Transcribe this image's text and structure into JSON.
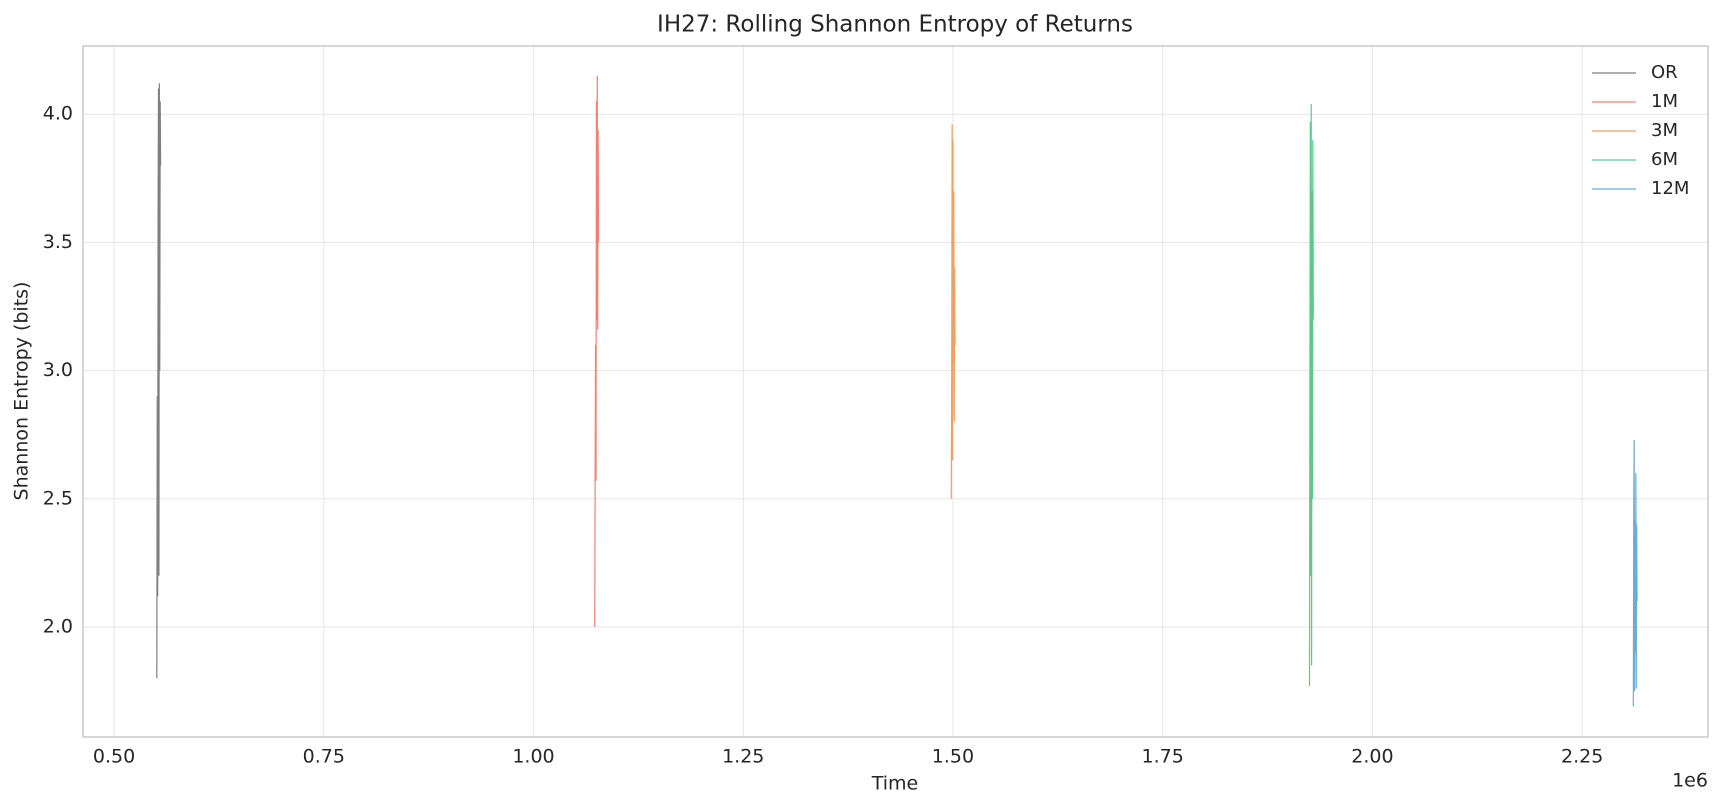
{
  "chart_data": {
    "type": "line",
    "title": "IH27: Rolling Shannon Entropy of Returns",
    "x_label": "Time",
    "y_label": "Shannon Entropy (bits)",
    "x_offset_label": "1e6",
    "xlim": [
      463000,
      2400000
    ],
    "xticks": [
      {
        "value": 500000,
        "label": "0.50"
      },
      {
        "value": 750000,
        "label": "0.75"
      },
      {
        "value": 1000000,
        "label": "1.00"
      },
      {
        "value": 1250000,
        "label": "1.25"
      },
      {
        "value": 1500000,
        "label": "1.50"
      },
      {
        "value": 1750000,
        "label": "1.75"
      },
      {
        "value": 2000000,
        "label": "2.00"
      },
      {
        "value": 2250000,
        "label": "2.25"
      }
    ],
    "ylim": [
      1.571,
      4.266
    ],
    "yticks": [
      {
        "value": 2,
        "label": "2.0"
      },
      {
        "value": 2.5,
        "label": "2.5"
      },
      {
        "value": 3,
        "label": "3.0"
      },
      {
        "value": 3.5,
        "label": "3.5"
      },
      {
        "value": 4,
        "label": "4.0"
      }
    ],
    "grid": true,
    "legend": "upper right",
    "series": [
      {
        "name": "OR",
        "color": "#7f7f7f",
        "x": [
          551000,
          551500,
          552000,
          552500,
          553000,
          553500,
          554000,
          554500,
          555000,
          555500
        ],
        "values": [
          1.8,
          2.9,
          2.12,
          3.6,
          4.1,
          2.2,
          4.12,
          3.0,
          4.05,
          3.8
        ]
      },
      {
        "name": "1M",
        "color": "#f08070",
        "x": [
          1073000,
          1073500,
          1074000,
          1074500,
          1075000,
          1075500,
          1076000,
          1076500,
          1077000,
          1077500
        ],
        "values": [
          2.0,
          2.6,
          3.1,
          2.57,
          4.05,
          3.2,
          4.15,
          3.16,
          3.94,
          3.5
        ]
      },
      {
        "name": "3M",
        "color": "#f0a060",
        "x": [
          1498000,
          1498500,
          1499000,
          1499500,
          1500000,
          1500500,
          1501000,
          1501500,
          1502000,
          1502500
        ],
        "values": [
          2.5,
          3.0,
          3.96,
          2.65,
          3.9,
          3.03,
          3.7,
          2.8,
          3.4,
          3.1
        ]
      },
      {
        "name": "6M",
        "color": "#5cc98a",
        "x": [
          1925000,
          1925500,
          1926000,
          1926500,
          1927000,
          1927500,
          1928000,
          1928500,
          1929000,
          1929500
        ],
        "values": [
          1.77,
          3.0,
          3.97,
          2.2,
          4.04,
          1.85,
          3.7,
          2.5,
          3.9,
          3.2
        ]
      },
      {
        "name": "12M",
        "color": "#6aaed6",
        "x": [
          2311000,
          2311500,
          2312000,
          2312500,
          2313000,
          2313500,
          2314000,
          2314500,
          2315000,
          2315500
        ],
        "values": [
          1.69,
          2.5,
          2.73,
          1.75,
          2.42,
          1.9,
          2.6,
          1.76,
          2.4,
          2.1
        ]
      }
    ]
  }
}
